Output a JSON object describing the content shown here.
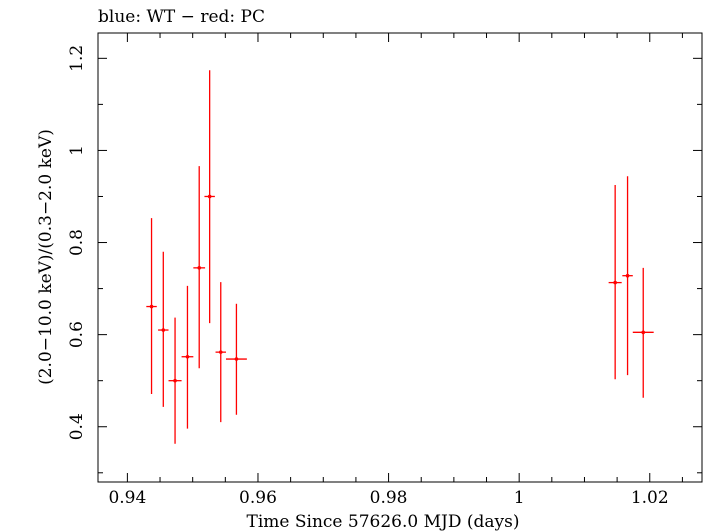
{
  "chart_data": {
    "type": "scatter",
    "title": "blue: WT − red: PC",
    "xlabel": "Time Since 57626.0 MJD (days)",
    "ylabel": "(2.0−10.0 keV)/(0.3−2.0 keV)",
    "xlim": [
      0.9355,
      1.028
    ],
    "ylim": [
      0.28,
      1.255
    ],
    "xticks": [
      {
        "value": 0.94,
        "label": "0.94"
      },
      {
        "value": 0.96,
        "label": "0.96"
      },
      {
        "value": 0.98,
        "label": "0.98"
      },
      {
        "value": 1.0,
        "label": "1"
      },
      {
        "value": 1.02,
        "label": "1.02"
      }
    ],
    "yticks": [
      {
        "value": 0.4,
        "label": "0.4"
      },
      {
        "value": 0.6,
        "label": "0.6"
      },
      {
        "value": 0.8,
        "label": "0.8"
      },
      {
        "value": 1.0,
        "label": "1"
      },
      {
        "value": 1.2,
        "label": "1.2"
      }
    ],
    "series": [
      {
        "name": "PC",
        "color": "#ff0000",
        "points": [
          {
            "x": 0.9437,
            "y": 0.661,
            "xerr": 0.0008,
            "ylo": 0.471,
            "yhi": 0.853
          },
          {
            "x": 0.9455,
            "y": 0.61,
            "xerr": 0.0008,
            "ylo": 0.443,
            "yhi": 0.78
          },
          {
            "x": 0.9473,
            "y": 0.5,
            "xerr": 0.001,
            "ylo": 0.363,
            "yhi": 0.637
          },
          {
            "x": 0.9492,
            "y": 0.552,
            "xerr": 0.0009,
            "ylo": 0.396,
            "yhi": 0.706
          },
          {
            "x": 0.951,
            "y": 0.745,
            "xerr": 0.0009,
            "ylo": 0.527,
            "yhi": 0.966
          },
          {
            "x": 0.9526,
            "y": 0.9,
            "xerr": 0.0008,
            "ylo": 0.625,
            "yhi": 1.174
          },
          {
            "x": 0.9543,
            "y": 0.562,
            "xerr": 0.0008,
            "ylo": 0.41,
            "yhi": 0.714
          },
          {
            "x": 0.9567,
            "y": 0.547,
            "xerr": 0.0016,
            "ylo": 0.426,
            "yhi": 0.667
          },
          {
            "x": 1.0147,
            "y": 0.713,
            "xerr": 0.001,
            "ylo": 0.503,
            "yhi": 0.925
          },
          {
            "x": 1.0166,
            "y": 0.728,
            "xerr": 0.0008,
            "ylo": 0.512,
            "yhi": 0.944
          },
          {
            "x": 1.019,
            "y": 0.605,
            "xerr": 0.0016,
            "ylo": 0.463,
            "yhi": 0.745
          }
        ]
      }
    ]
  }
}
